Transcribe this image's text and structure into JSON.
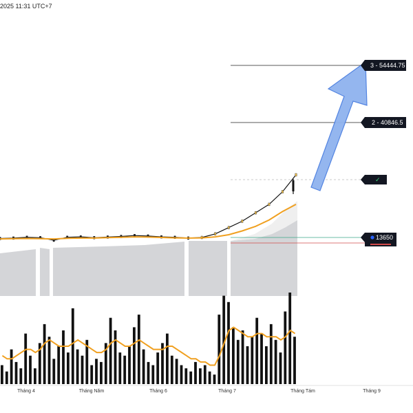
{
  "header": {
    "timestamp": "2025 11:31 UTC+7"
  },
  "colors": {
    "candle_up": "#f2c14e",
    "candle_down": "#222222",
    "ma_line": "#f0a020",
    "volume_bar": "#111111",
    "target_line": "#222222",
    "arrow_fill": "#8fb3ef",
    "arrow_stroke": "#4a7ee0",
    "support_line": "#3aa88a",
    "resistance_line": "#d24a4a",
    "price_badge": "#2962ff",
    "tag_bg": "#131722",
    "check_color": "#3ad07a"
  },
  "targets": [
    {
      "label": "3 - 54444.75",
      "value": 54444.75
    },
    {
      "label": "2 - 40846.5",
      "value": 40846.5
    }
  ],
  "check_tag": {
    "label": "✓"
  },
  "price_tag": {
    "label": "13650",
    "value": 13650
  },
  "chart_data": {
    "type": "line",
    "title": "",
    "x_ticks": [
      "Tháng 4",
      "Tháng Năm",
      "Tháng 6",
      "Tháng 7",
      "Tháng Tám",
      "Tháng 9"
    ],
    "price_axis_labels": [
      "54444.75",
      "40846.5",
      "13650"
    ],
    "grid": false,
    "legend": "none",
    "series": [
      {
        "values": [
          13400,
          13500,
          13700,
          13600,
          13000,
          13700,
          13800,
          13600,
          13750,
          13900,
          14100,
          14000,
          13800,
          13700,
          13500,
          13650,
          14500,
          16000,
          17500,
          19500,
          21500,
          24500,
          28500
        ]
      },
      {
        "values": [
          13300,
          13350,
          13400,
          13350,
          13300,
          13450,
          13500,
          13500,
          13600,
          13700,
          13800,
          13750,
          13650,
          13550,
          13500,
          13550,
          13800,
          14300,
          15200,
          16300,
          17800,
          19800,
          21500
        ]
      }
    ],
    "volume": [
      6,
      4,
      11,
      7,
      5,
      16,
      9,
      5,
      13,
      19,
      15,
      8,
      12,
      17,
      10,
      24,
      11,
      9,
      14,
      6,
      8,
      7,
      13,
      21,
      17,
      10,
      9,
      12,
      18,
      22,
      11,
      7,
      6,
      10,
      13,
      16,
      9,
      8,
      6,
      5,
      4,
      7,
      5,
      6,
      4,
      3,
      22,
      28,
      26,
      18,
      14,
      17,
      12,
      15,
      21,
      16,
      12,
      19,
      14,
      10,
      23,
      29,
      15
    ],
    "volume_ma": [
      9,
      8,
      8,
      9,
      10,
      11,
      11,
      10,
      11,
      13,
      14,
      13,
      12,
      12,
      12,
      13,
      14,
      13,
      12,
      11,
      10,
      10,
      11,
      13,
      14,
      13,
      12,
      12,
      13,
      14,
      13,
      12,
      11,
      11,
      11,
      12,
      12,
      11,
      10,
      9,
      8,
      8,
      7,
      7,
      6,
      6,
      9,
      13,
      17,
      18,
      17,
      16,
      15,
      15,
      16,
      16,
      15,
      15,
      15,
      14,
      15,
      17,
      16
    ]
  }
}
